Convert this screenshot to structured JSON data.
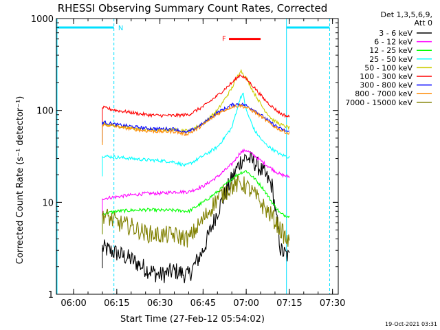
{
  "chart_data": {
    "type": "line",
    "title": "RHESSI Observing Summary Count Rates, Corrected",
    "xlabel": "Start Time (27-Feb-12 05:54:02)",
    "ylabel": "Corrected Count Rate (s⁻¹ detector⁻¹)",
    "yscale": "log",
    "ylim": [
      1,
      1000
    ],
    "xlim_minutes_after_start": [
      0,
      98
    ],
    "x_ticks": [
      "06:00",
      "06:15",
      "06:30",
      "06:45",
      "07:00",
      "07:15",
      "07:30"
    ],
    "y_ticks": [
      "1",
      "10",
      "100",
      "1000"
    ],
    "legend": {
      "placement": "top-right, outside plot",
      "header": [
        "Det 1,3,5,6,9,",
        "Att 0"
      ]
    },
    "annotations": {
      "night_label": "N",
      "flare_label": "F",
      "timestamp": "19-Oct-2021 03:31"
    },
    "night_bars": [
      {
        "start": "05:54",
        "end": "06:14",
        "level": 800
      },
      {
        "start": "07:14",
        "end": "07:29",
        "level": 800
      }
    ],
    "flare_bar": {
      "start": "06:54",
      "end": "07:05",
      "level": 600
    },
    "dashed_lines": [
      "06:14",
      "07:29"
    ],
    "series": [
      {
        "name": "3 - 6 keV",
        "color": "#000000",
        "points": [
          [
            "06:10",
            3.2
          ],
          [
            "06:15",
            2.8
          ],
          [
            "06:20",
            2.4
          ],
          [
            "06:25",
            1.9
          ],
          [
            "06:30",
            1.6
          ],
          [
            "06:35",
            1.8
          ],
          [
            "06:40",
            1.6
          ],
          [
            "06:45",
            3.0
          ],
          [
            "06:50",
            8.0
          ],
          [
            "06:55",
            18.0
          ],
          [
            "06:58",
            28.0
          ],
          [
            "07:00",
            31.0
          ],
          [
            "07:03",
            27.0
          ],
          [
            "07:06",
            21.0
          ],
          [
            "07:09",
            15.0
          ],
          [
            "07:12",
            3.0
          ],
          [
            "07:15",
            2.5
          ]
        ]
      },
      {
        "name": "6 - 12 keV",
        "color": "#ff00ff",
        "points": [
          [
            "06:10",
            11.0
          ],
          [
            "06:15",
            11.5
          ],
          [
            "06:20",
            12.0
          ],
          [
            "06:25",
            12.5
          ],
          [
            "06:30",
            12.5
          ],
          [
            "06:35",
            13.0
          ],
          [
            "06:40",
            13.0
          ],
          [
            "06:45",
            15.0
          ],
          [
            "06:50",
            19.0
          ],
          [
            "06:55",
            26.0
          ],
          [
            "06:58",
            35.0
          ],
          [
            "07:00",
            37.0
          ],
          [
            "07:03",
            32.0
          ],
          [
            "07:06",
            27.0
          ],
          [
            "07:09",
            23.0
          ],
          [
            "07:12",
            20.0
          ],
          [
            "07:15",
            19.0
          ]
        ]
      },
      {
        "name": "12 - 25 keV",
        "color": "#00ff00",
        "points": [
          [
            "06:10",
            7.5
          ],
          [
            "06:15",
            8.0
          ],
          [
            "06:20",
            8.2
          ],
          [
            "06:25",
            8.3
          ],
          [
            "06:30",
            8.2
          ],
          [
            "06:35",
            8.2
          ],
          [
            "06:40",
            8.0
          ],
          [
            "06:45",
            10.0
          ],
          [
            "06:50",
            13.0
          ],
          [
            "06:55",
            18.0
          ],
          [
            "06:58",
            21.0
          ],
          [
            "07:00",
            22.0
          ],
          [
            "07:03",
            18.0
          ],
          [
            "07:06",
            14.0
          ],
          [
            "07:09",
            10.0
          ],
          [
            "07:12",
            7.5
          ],
          [
            "07:15",
            7.0
          ]
        ]
      },
      {
        "name": "25 - 50 keV",
        "color": "#00ffff",
        "points": [
          [
            "06:10",
            32.0
          ],
          [
            "06:15",
            31.0
          ],
          [
            "06:20",
            30.0
          ],
          [
            "06:25",
            29.0
          ],
          [
            "06:30",
            28.5
          ],
          [
            "06:35",
            27.5
          ],
          [
            "06:39",
            25.0
          ],
          [
            "06:41",
            27.0
          ],
          [
            "06:45",
            32.0
          ],
          [
            "06:50",
            40.0
          ],
          [
            "06:55",
            65.0
          ],
          [
            "06:58",
            140.0
          ],
          [
            "06:59",
            150.0
          ],
          [
            "07:00",
            100.0
          ],
          [
            "07:03",
            60.0
          ],
          [
            "07:06",
            45.0
          ],
          [
            "07:09",
            38.0
          ],
          [
            "07:12",
            33.0
          ],
          [
            "07:15",
            31.0
          ]
        ]
      },
      {
        "name": "50 - 100 keV",
        "color": "#cccc00",
        "points": [
          [
            "06:10",
            72.0
          ],
          [
            "06:15",
            68.0
          ],
          [
            "06:20",
            64.0
          ],
          [
            "06:25",
            62.0
          ],
          [
            "06:30",
            61.0
          ],
          [
            "06:35",
            62.0
          ],
          [
            "06:40",
            60.0
          ],
          [
            "06:45",
            72.0
          ],
          [
            "06:50",
            100.0
          ],
          [
            "06:55",
            175.0
          ],
          [
            "06:58",
            275.0
          ],
          [
            "07:00",
            225.0
          ],
          [
            "07:03",
            150.0
          ],
          [
            "07:06",
            105.0
          ],
          [
            "07:09",
            80.0
          ],
          [
            "07:12",
            70.0
          ],
          [
            "07:15",
            65.0
          ]
        ]
      },
      {
        "name": "100 - 300 keV",
        "color": "#ff0000",
        "points": [
          [
            "06:10",
            108.0
          ],
          [
            "06:15",
            100.0
          ],
          [
            "06:20",
            95.0
          ],
          [
            "06:25",
            90.0
          ],
          [
            "06:30",
            88.0
          ],
          [
            "06:35",
            88.0
          ],
          [
            "06:40",
            90.0
          ],
          [
            "06:45",
            110.0
          ],
          [
            "06:50",
            145.0
          ],
          [
            "06:55",
            200.0
          ],
          [
            "06:58",
            245.0
          ],
          [
            "07:00",
            220.0
          ],
          [
            "07:03",
            175.0
          ],
          [
            "07:06",
            135.0
          ],
          [
            "07:09",
            110.0
          ],
          [
            "07:12",
            92.0
          ],
          [
            "07:15",
            85.0
          ]
        ]
      },
      {
        "name": "300 - 800 keV",
        "color": "#0000ff",
        "points": [
          [
            "06:10",
            75.0
          ],
          [
            "06:15",
            70.0
          ],
          [
            "06:20",
            67.0
          ],
          [
            "06:25",
            64.0
          ],
          [
            "06:30",
            63.0
          ],
          [
            "06:35",
            63.0
          ],
          [
            "06:39",
            57.0
          ],
          [
            "06:42",
            63.0
          ],
          [
            "06:45",
            72.0
          ],
          [
            "06:50",
            95.0
          ],
          [
            "06:55",
            115.0
          ],
          [
            "06:58",
            118.0
          ],
          [
            "07:00",
            113.0
          ],
          [
            "07:03",
            100.0
          ],
          [
            "07:06",
            85.0
          ],
          [
            "07:09",
            72.0
          ],
          [
            "07:12",
            63.0
          ],
          [
            "07:15",
            58.0
          ]
        ]
      },
      {
        "name": "800 - 7000 keV",
        "color": "#ff8800",
        "points": [
          [
            "06:10",
            70.0
          ],
          [
            "06:15",
            67.0
          ],
          [
            "06:20",
            63.0
          ],
          [
            "06:25",
            60.0
          ],
          [
            "06:30",
            59.0
          ],
          [
            "06:35",
            59.0
          ],
          [
            "06:39",
            55.0
          ],
          [
            "06:42",
            60.0
          ],
          [
            "06:45",
            70.0
          ],
          [
            "06:50",
            92.0
          ],
          [
            "06:55",
            110.0
          ],
          [
            "06:58",
            113.0
          ],
          [
            "07:00",
            108.0
          ],
          [
            "07:03",
            96.0
          ],
          [
            "07:06",
            82.0
          ],
          [
            "07:09",
            69.0
          ],
          [
            "07:12",
            61.0
          ],
          [
            "07:15",
            56.0
          ]
        ]
      },
      {
        "name": "7000 - 15000 keV",
        "color": "#808000",
        "points": [
          [
            "06:10",
            7.5
          ],
          [
            "06:15",
            6.0
          ],
          [
            "06:20",
            5.5
          ],
          [
            "06:25",
            4.6
          ],
          [
            "06:30",
            4.4
          ],
          [
            "06:35",
            4.4
          ],
          [
            "06:40",
            4.0
          ],
          [
            "06:45",
            6.5
          ],
          [
            "06:50",
            11.0
          ],
          [
            "06:55",
            15.0
          ],
          [
            "06:58",
            16.0
          ],
          [
            "07:00",
            15.0
          ],
          [
            "07:03",
            12.0
          ],
          [
            "07:06",
            9.0
          ],
          [
            "07:09",
            7.0
          ],
          [
            "07:12",
            5.0
          ],
          [
            "07:15",
            3.5
          ]
        ]
      }
    ]
  }
}
